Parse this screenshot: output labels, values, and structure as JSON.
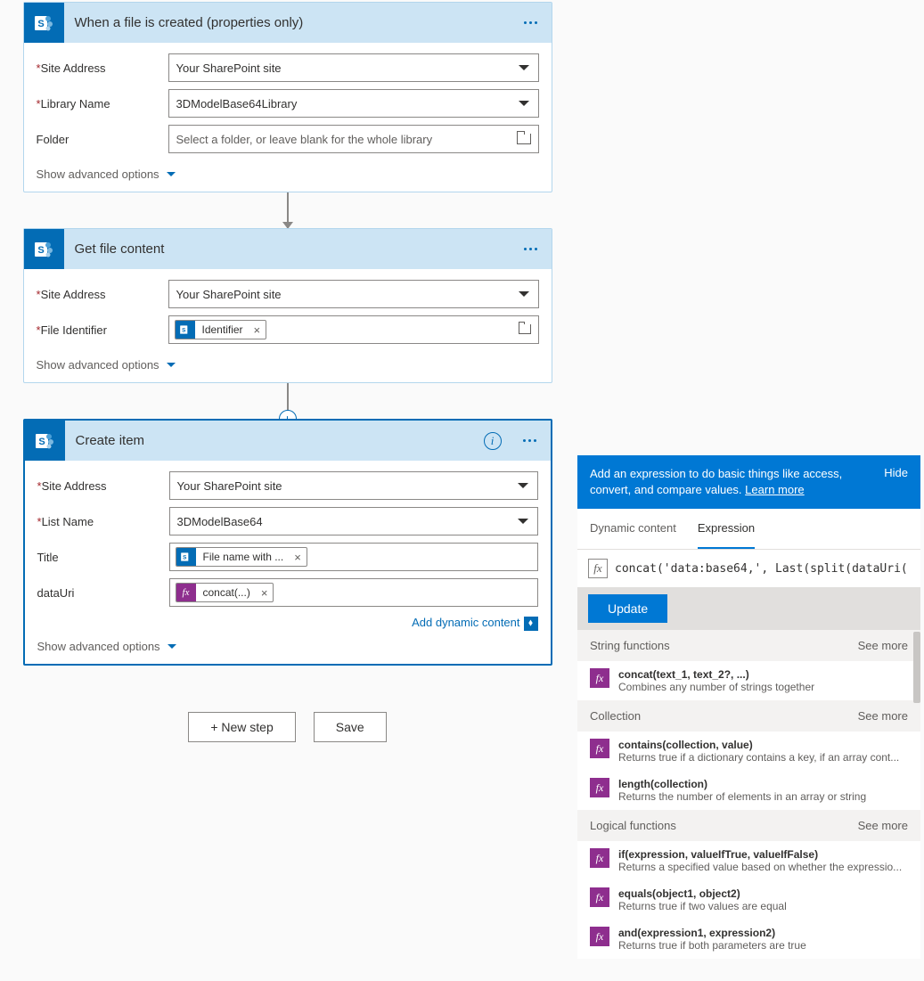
{
  "colors": {
    "brand": "#036cb5",
    "accent": "#0078d4",
    "fx_purple": "#8e2e8e",
    "required": "#a4262c",
    "border": "#8a8886",
    "text": "#323130",
    "muted": "#605e5c",
    "header_bg": "#cce4f4",
    "card_border": "#b3d6ed"
  },
  "cards": [
    {
      "title": "When a file is created (properties only)",
      "selected": false,
      "show_info": false,
      "fields": [
        {
          "label": "Site Address",
          "required": true,
          "type": "dropdown",
          "value": "Your SharePoint site"
        },
        {
          "label": "Library Name",
          "required": true,
          "type": "dropdown",
          "value": "3DModelBase64Library"
        },
        {
          "label": "Folder",
          "required": false,
          "type": "folder",
          "placeholder": "Select a folder, or leave blank for the whole library"
        }
      ],
      "advanced": "Show advanced options"
    },
    {
      "title": "Get file content",
      "selected": false,
      "show_info": false,
      "fields": [
        {
          "label": "Site Address",
          "required": true,
          "type": "dropdown",
          "value": "Your SharePoint site"
        },
        {
          "label": "File Identifier",
          "required": true,
          "type": "tokens_folder",
          "tokens": [
            {
              "kind": "sp",
              "label": "Identifier"
            }
          ]
        }
      ],
      "advanced": "Show advanced options"
    },
    {
      "title": "Create item",
      "selected": true,
      "show_info": true,
      "fields": [
        {
          "label": "Site Address",
          "required": true,
          "type": "dropdown",
          "value": "Your SharePoint site"
        },
        {
          "label": "List Name",
          "required": true,
          "type": "dropdown",
          "value": "3DModelBase64"
        },
        {
          "label": "Title",
          "required": false,
          "type": "tokens",
          "tokens": [
            {
              "kind": "sp",
              "label": "File name with ..."
            }
          ]
        },
        {
          "label": "dataUri",
          "required": false,
          "type": "tokens",
          "tokens": [
            {
              "kind": "fx",
              "label": "concat(...)"
            }
          ]
        }
      ],
      "dynamic_link": "Add dynamic content",
      "advanced": "Show advanced options"
    }
  ],
  "buttons": {
    "new_step": "+ New step",
    "save": "Save"
  },
  "expr_panel": {
    "header": "Add an expression to do basic things like access, convert, and compare values.",
    "learn_more": "Learn more",
    "hide": "Hide",
    "tabs": {
      "dynamic": "Dynamic content",
      "expression": "Expression"
    },
    "code": "concat('data:base64,', Last(split(dataUri(",
    "update": "Update",
    "see_more": "See more",
    "categories": [
      {
        "name": "String functions",
        "fns": [
          {
            "sig": "concat(text_1, text_2?, ...)",
            "desc": "Combines any number of strings together"
          }
        ]
      },
      {
        "name": "Collection",
        "fns": [
          {
            "sig": "contains(collection, value)",
            "desc": "Returns true if a dictionary contains a key, if an array cont..."
          },
          {
            "sig": "length(collection)",
            "desc": "Returns the number of elements in an array or string"
          }
        ]
      },
      {
        "name": "Logical functions",
        "fns": [
          {
            "sig": "if(expression, valueIfTrue, valueIfFalse)",
            "desc": "Returns a specified value based on whether the expressio..."
          },
          {
            "sig": "equals(object1, object2)",
            "desc": "Returns true if two values are equal"
          },
          {
            "sig": "and(expression1, expression2)",
            "desc": "Returns true if both parameters are true"
          }
        ]
      }
    ]
  }
}
